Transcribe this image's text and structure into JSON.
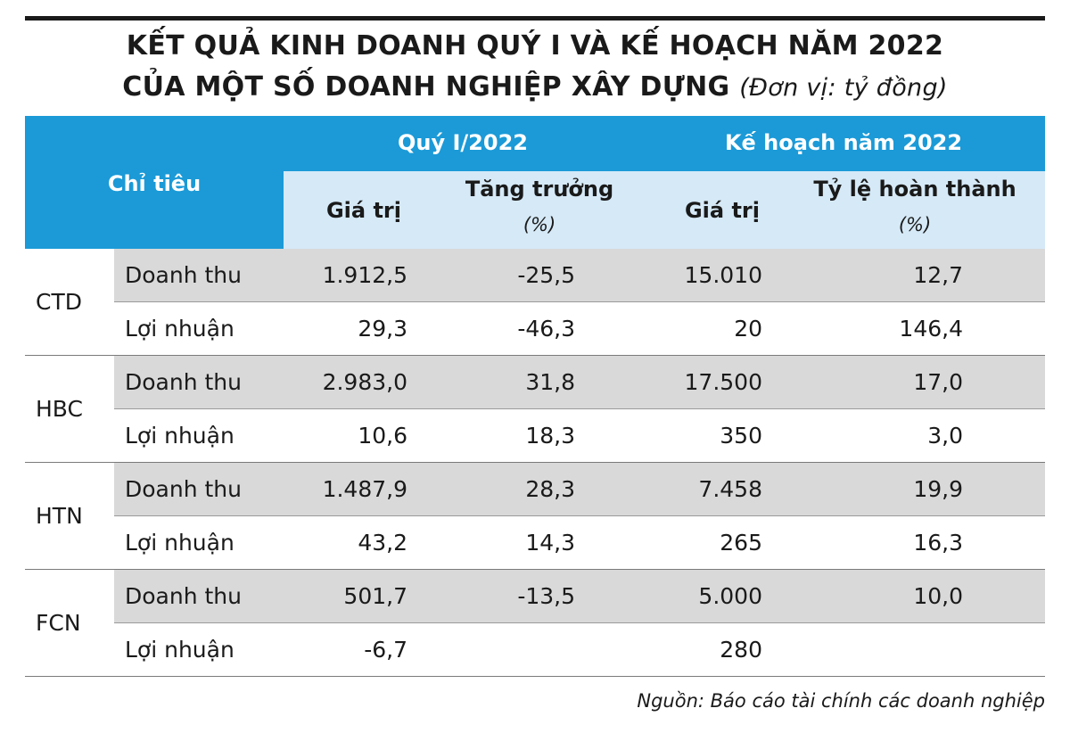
{
  "header": {
    "title_line1": "KẾT QUẢ KINH DOANH QUÝ I VÀ KẾ HOẠCH NĂM 2022",
    "title_line2": "CỦA MỘT SỐ DOANH NGHIỆP XÂY DỰNG",
    "unit": "(Đơn vị: tỷ đồng)"
  },
  "table": {
    "columns": {
      "indicator": "Chỉ tiêu",
      "group1": "Quý I/2022",
      "group2": "Kế hoạch năm 2022",
      "sub": [
        {
          "label": "Giá trị"
        },
        {
          "label": "Tăng trưởng",
          "note": "(%)"
        },
        {
          "label": "Giá trị"
        },
        {
          "label": "Tỷ lệ hoàn thành",
          "note": "(%)"
        }
      ]
    },
    "companies": [
      {
        "name": "CTD",
        "rows": [
          {
            "label": "Doanh thu",
            "values": [
              "1.912,5",
              "-25,5",
              "15.010",
              "12,7"
            ]
          },
          {
            "label": "Lợi nhuận",
            "values": [
              "29,3",
              "-46,3",
              "20",
              "146,4"
            ]
          }
        ]
      },
      {
        "name": "HBC",
        "rows": [
          {
            "label": "Doanh thu",
            "values": [
              "2.983,0",
              "31,8",
              "17.500",
              "17,0"
            ]
          },
          {
            "label": "Lợi nhuận",
            "values": [
              "10,6",
              "18,3",
              "350",
              "3,0"
            ]
          }
        ]
      },
      {
        "name": "HTN",
        "rows": [
          {
            "label": "Doanh thu",
            "values": [
              "1.487,9",
              "28,3",
              "7.458",
              "19,9"
            ]
          },
          {
            "label": "Lợi nhuận",
            "values": [
              "43,2",
              "14,3",
              "265",
              "16,3"
            ]
          }
        ]
      },
      {
        "name": "FCN",
        "rows": [
          {
            "label": "Doanh thu",
            "values": [
              "501,7",
              "-13,5",
              "5.000",
              "10,0"
            ]
          },
          {
            "label": "Lợi nhuận",
            "values": [
              "-6,7",
              null,
              "280",
              null
            ]
          }
        ]
      }
    ]
  },
  "source": "Nguồn: Báo cáo tài chính các doanh nghiệp"
}
